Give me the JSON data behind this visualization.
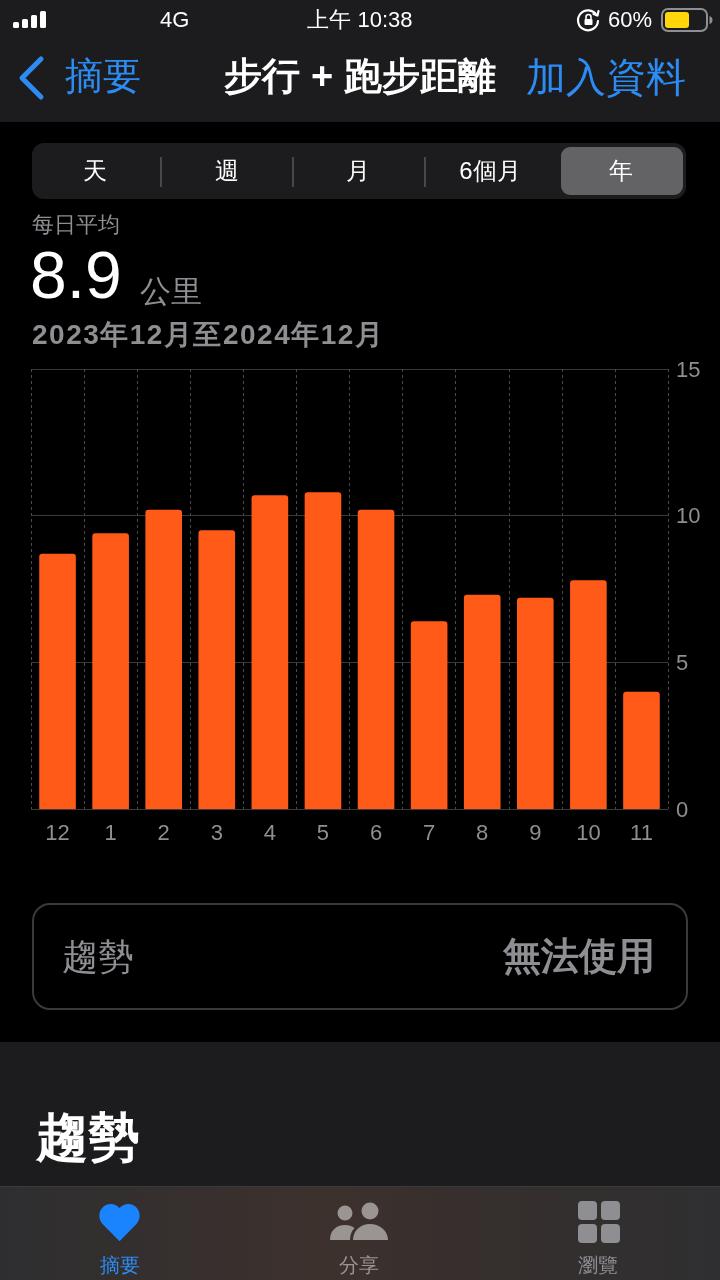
{
  "chart_data": {
    "type": "bar",
    "title": "步行 + 跑步距離",
    "subtitle": "2023年12月至2024年12月",
    "categories": [
      "12",
      "1",
      "2",
      "3",
      "4",
      "5",
      "6",
      "7",
      "8",
      "9",
      "10",
      "11"
    ],
    "values": [
      8.7,
      9.4,
      10.2,
      9.5,
      10.7,
      10.8,
      10.2,
      6.4,
      7.3,
      7.2,
      7.8,
      4.0
    ],
    "color": "#ff5a17",
    "ylim": [
      0,
      15
    ],
    "yticks": [
      0,
      5,
      10,
      15
    ],
    "grid": true,
    "annotations": [
      "4G",
      "上午 10:38",
      "60%",
      "摘要",
      "加入資料",
      "天",
      "週",
      "月",
      "6個月",
      "年",
      "每日平均",
      "8.9",
      "公里",
      "趨勢",
      "無法使用",
      "趨勢",
      "摘要",
      "分享",
      "瀏覽"
    ]
  }
}
